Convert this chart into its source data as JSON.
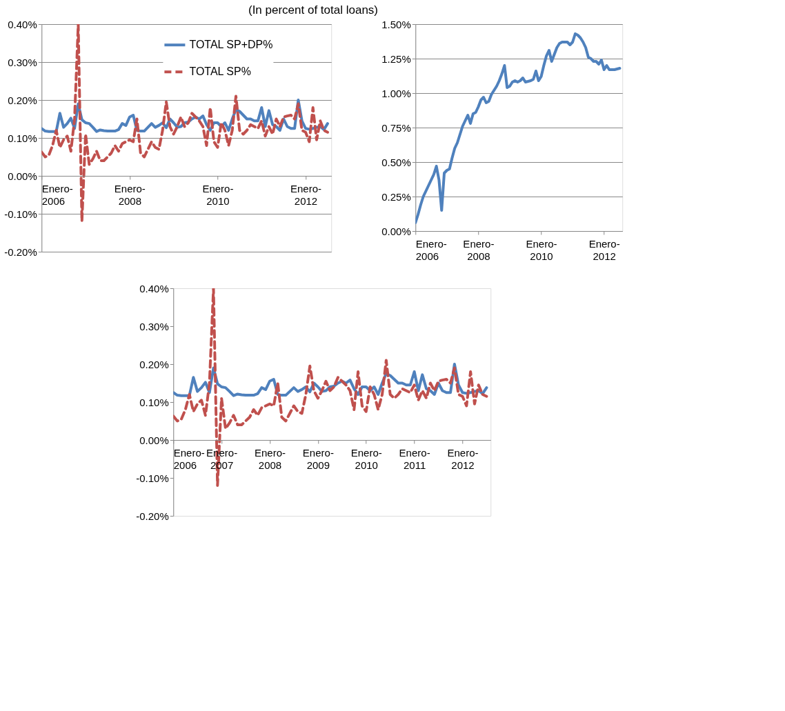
{
  "chart_data": [
    {
      "type": "line",
      "title": "(In percent of total loans)",
      "x": [
        "2006-01",
        "2006-02",
        "2006-03",
        "2006-04",
        "2006-05",
        "2006-06",
        "2006-07",
        "2006-08",
        "2006-09",
        "2006-10",
        "2006-11",
        "2006-12",
        "2007-01",
        "2007-02",
        "2007-03",
        "2007-04",
        "2007-05",
        "2007-06",
        "2007-07",
        "2007-08",
        "2007-09",
        "2007-10",
        "2007-11",
        "2007-12",
        "2008-01",
        "2008-02",
        "2008-03",
        "2008-04",
        "2008-05",
        "2008-06",
        "2008-07",
        "2008-08",
        "2008-09",
        "2008-10",
        "2008-11",
        "2008-12",
        "2009-01",
        "2009-02",
        "2009-03",
        "2009-04",
        "2009-05",
        "2009-06",
        "2009-07",
        "2009-08",
        "2009-09",
        "2009-10",
        "2009-11",
        "2009-12",
        "2010-01",
        "2010-02",
        "2010-03",
        "2010-04",
        "2010-05",
        "2010-06",
        "2010-07",
        "2010-08",
        "2010-09",
        "2010-10",
        "2010-11",
        "2010-12",
        "2011-01",
        "2011-02",
        "2011-03",
        "2011-04",
        "2011-05",
        "2011-06",
        "2011-07",
        "2011-08",
        "2011-09",
        "2011-10",
        "2011-11",
        "2011-12",
        "2012-01",
        "2012-02",
        "2012-03",
        "2012-04",
        "2012-05",
        "2012-06",
        "2012-07"
      ],
      "xlim": [
        "2006-01",
        "2012-08"
      ],
      "xticks": [
        {
          "value": "2006-01",
          "label": "Enero-2006"
        },
        {
          "value": "2008-01",
          "label": "Enero-2008"
        },
        {
          "value": "2010-01",
          "label": "Enero-2010"
        },
        {
          "value": "2012-01",
          "label": "Enero-2012"
        }
      ],
      "ylim": [
        -0.2,
        0.4
      ],
      "yticks": [
        {
          "value": -0.2,
          "label": "-0.20%"
        },
        {
          "value": -0.1,
          "label": "-0.10%"
        },
        {
          "value": 0,
          "label": "0.00%"
        },
        {
          "value": 0.1,
          "label": "0.10%"
        },
        {
          "value": 0.2,
          "label": "0.20%"
        },
        {
          "value": 0.3,
          "label": "0.30%"
        },
        {
          "value": 0.4,
          "label": "0.40%"
        }
      ],
      "grid": "y",
      "legend": "top right",
      "series": [
        {
          "name": "TOTAL SP+DP%",
          "color": "#4f81bd",
          "line_style": "solid",
          "values": [
            0.125,
            0.118,
            0.117,
            0.117,
            0.117,
            0.165,
            0.128,
            0.138,
            0.152,
            0.125,
            0.19,
            0.148,
            0.14,
            0.138,
            0.128,
            0.117,
            0.121,
            0.119,
            0.118,
            0.118,
            0.118,
            0.122,
            0.138,
            0.133,
            0.155,
            0.16,
            0.12,
            0.118,
            0.118,
            0.128,
            0.138,
            0.128,
            0.133,
            0.14,
            0.127,
            0.15,
            0.14,
            0.128,
            0.13,
            0.14,
            0.142,
            0.15,
            0.155,
            0.15,
            0.158,
            0.135,
            0.12,
            0.14,
            0.14,
            0.13,
            0.14,
            0.12,
            0.15,
            0.175,
            0.17,
            0.16,
            0.15,
            0.15,
            0.145,
            0.145,
            0.18,
            0.13,
            0.172,
            0.135,
            0.13,
            0.12,
            0.15,
            0.13,
            0.125,
            0.125,
            0.2,
            0.145,
            0.125,
            0.123,
            0.125,
            0.128,
            0.13,
            0.122,
            0.138
          ]
        },
        {
          "name": "TOTAL SP%",
          "color": "#c0504d",
          "line_style": "dashed",
          "values": [
            0.063,
            0.05,
            0.055,
            0.08,
            0.12,
            0.075,
            0.095,
            0.105,
            0.065,
            0.15,
            0.4,
            -0.12,
            0.11,
            0.03,
            0.045,
            0.065,
            0.04,
            0.04,
            0.05,
            0.06,
            0.08,
            0.065,
            0.085,
            0.09,
            0.095,
            0.09,
            0.15,
            0.06,
            0.05,
            0.07,
            0.09,
            0.075,
            0.07,
            0.12,
            0.195,
            0.13,
            0.11,
            0.13,
            0.155,
            0.13,
            0.14,
            0.165,
            0.155,
            0.145,
            0.13,
            0.08,
            0.18,
            0.09,
            0.075,
            0.14,
            0.12,
            0.08,
            0.12,
            0.21,
            0.12,
            0.11,
            0.12,
            0.135,
            0.13,
            0.125,
            0.145,
            0.105,
            0.13,
            0.11,
            0.15,
            0.13,
            0.155,
            0.158,
            0.16,
            0.15,
            0.19,
            0.12,
            0.115,
            0.09,
            0.18,
            0.095,
            0.145,
            0.12,
            0.115
          ]
        }
      ]
    },
    {
      "type": "line",
      "x": [
        "2006-01",
        "2006-02",
        "2006-03",
        "2006-04",
        "2006-05",
        "2006-06",
        "2006-07",
        "2006-08",
        "2006-09",
        "2006-10",
        "2006-11",
        "2006-12",
        "2007-01",
        "2007-02",
        "2007-03",
        "2007-04",
        "2007-05",
        "2007-06",
        "2007-07",
        "2007-08",
        "2007-09",
        "2007-10",
        "2007-11",
        "2007-12",
        "2008-01",
        "2008-02",
        "2008-03",
        "2008-04",
        "2008-05",
        "2008-06",
        "2008-07",
        "2008-08",
        "2008-09",
        "2008-10",
        "2008-11",
        "2008-12",
        "2009-01",
        "2009-02",
        "2009-03",
        "2009-04",
        "2009-05",
        "2009-06",
        "2009-07",
        "2009-08",
        "2009-09",
        "2009-10",
        "2009-11",
        "2009-12",
        "2010-01",
        "2010-02",
        "2010-03",
        "2010-04",
        "2010-05",
        "2010-06",
        "2010-07",
        "2010-08",
        "2010-09",
        "2010-10",
        "2010-11",
        "2010-12",
        "2011-01",
        "2011-02",
        "2011-03",
        "2011-04",
        "2011-05",
        "2011-06",
        "2011-07",
        "2011-08",
        "2011-09",
        "2011-10",
        "2011-11",
        "2011-12",
        "2012-01",
        "2012-02",
        "2012-03",
        "2012-04",
        "2012-05",
        "2012-06",
        "2012-07"
      ],
      "xlim": [
        "2006-01",
        "2012-08"
      ],
      "xticks": [
        {
          "value": "2006-01",
          "label": "Enero-2006"
        },
        {
          "value": "2008-01",
          "label": "Enero-2008"
        },
        {
          "value": "2010-01",
          "label": "Enero-2010"
        },
        {
          "value": "2012-01",
          "label": "Enero-2012"
        }
      ],
      "ylim": [
        0,
        1.5
      ],
      "yticks": [
        {
          "value": 0,
          "label": "0.00%"
        },
        {
          "value": 0.25,
          "label": "0.25%"
        },
        {
          "value": 0.5,
          "label": "0.50%"
        },
        {
          "value": 0.75,
          "label": "0.75%"
        },
        {
          "value": 1,
          "label": "1.00%"
        },
        {
          "value": 1.25,
          "label": "1.25%"
        },
        {
          "value": 1.5,
          "label": "1.50%"
        }
      ],
      "grid": "y",
      "series": [
        {
          "color": "#4f81bd",
          "line_style": "solid",
          "values": [
            0.06,
            0.12,
            0.19,
            0.25,
            0.29,
            0.33,
            0.37,
            0.41,
            0.47,
            0.37,
            0.15,
            0.42,
            0.44,
            0.45,
            0.53,
            0.6,
            0.64,
            0.7,
            0.76,
            0.8,
            0.84,
            0.78,
            0.85,
            0.86,
            0.9,
            0.95,
            0.97,
            0.93,
            0.94,
            0.99,
            1.02,
            1.05,
            1.09,
            1.14,
            1.2,
            1.04,
            1.05,
            1.08,
            1.09,
            1.08,
            1.09,
            1.11,
            1.08,
            1.085,
            1.09,
            1.1,
            1.16,
            1.09,
            1.12,
            1.2,
            1.27,
            1.31,
            1.23,
            1.28,
            1.33,
            1.36,
            1.37,
            1.37,
            1.37,
            1.35,
            1.37,
            1.43,
            1.42,
            1.4,
            1.37,
            1.33,
            1.26,
            1.25,
            1.23,
            1.23,
            1.21,
            1.24,
            1.17,
            1.2,
            1.17,
            1.17,
            1.17,
            1.175,
            1.18
          ]
        }
      ]
    },
    {
      "type": "line",
      "x": [
        "2006-01",
        "2006-02",
        "2006-03",
        "2006-04",
        "2006-05",
        "2006-06",
        "2006-07",
        "2006-08",
        "2006-09",
        "2006-10",
        "2006-11",
        "2006-12",
        "2007-01",
        "2007-02",
        "2007-03",
        "2007-04",
        "2007-05",
        "2007-06",
        "2007-07",
        "2007-08",
        "2007-09",
        "2007-10",
        "2007-11",
        "2007-12",
        "2008-01",
        "2008-02",
        "2008-03",
        "2008-04",
        "2008-05",
        "2008-06",
        "2008-07",
        "2008-08",
        "2008-09",
        "2008-10",
        "2008-11",
        "2008-12",
        "2009-01",
        "2009-02",
        "2009-03",
        "2009-04",
        "2009-05",
        "2009-06",
        "2009-07",
        "2009-08",
        "2009-09",
        "2009-10",
        "2009-11",
        "2009-12",
        "2010-01",
        "2010-02",
        "2010-03",
        "2010-04",
        "2010-05",
        "2010-06",
        "2010-07",
        "2010-08",
        "2010-09",
        "2010-10",
        "2010-11",
        "2010-12",
        "2011-01",
        "2011-02",
        "2011-03",
        "2011-04",
        "2011-05",
        "2011-06",
        "2011-07",
        "2011-08",
        "2011-09",
        "2011-10",
        "2011-11",
        "2011-12",
        "2012-01",
        "2012-02",
        "2012-03",
        "2012-04",
        "2012-05",
        "2012-06",
        "2012-07"
      ],
      "xlim": [
        "2006-01",
        "2012-08"
      ],
      "xticks": [
        {
          "value": "2006-01",
          "label": "Enero-2006"
        },
        {
          "value": "2007-01",
          "label": "Enero-2007"
        },
        {
          "value": "2008-01",
          "label": "Enero-2008"
        },
        {
          "value": "2009-01",
          "label": "Enero-2009"
        },
        {
          "value": "2010-01",
          "label": "Enero-2010"
        },
        {
          "value": "2011-01",
          "label": "Enero-2011"
        },
        {
          "value": "2012-01",
          "label": "Enero-2012"
        }
      ],
      "ylim": [
        -0.2,
        0.4
      ],
      "yticks": [
        {
          "value": -0.2,
          "label": "-0.20%"
        },
        {
          "value": -0.1,
          "label": "-0.10%"
        },
        {
          "value": 0,
          "label": "0.00%"
        },
        {
          "value": 0.1,
          "label": "0.10%"
        },
        {
          "value": 0.2,
          "label": "0.20%"
        },
        {
          "value": 0.3,
          "label": "0.30%"
        },
        {
          "value": 0.4,
          "label": "0.40%"
        }
      ],
      "legend": "top right",
      "series": [
        {
          "name": "TOTAL SP+DP%",
          "color": "#4f81bd",
          "line_style": "solid",
          "values": [
            0.125,
            0.118,
            0.117,
            0.117,
            0.117,
            0.165,
            0.128,
            0.138,
            0.152,
            0.125,
            0.19,
            0.148,
            0.14,
            0.138,
            0.128,
            0.117,
            0.121,
            0.119,
            0.118,
            0.118,
            0.118,
            0.122,
            0.138,
            0.133,
            0.155,
            0.16,
            0.12,
            0.118,
            0.118,
            0.128,
            0.138,
            0.128,
            0.133,
            0.14,
            0.127,
            0.15,
            0.14,
            0.128,
            0.13,
            0.14,
            0.142,
            0.15,
            0.155,
            0.15,
            0.158,
            0.135,
            0.12,
            0.14,
            0.14,
            0.13,
            0.14,
            0.12,
            0.15,
            0.175,
            0.17,
            0.16,
            0.15,
            0.15,
            0.145,
            0.145,
            0.18,
            0.13,
            0.172,
            0.135,
            0.13,
            0.12,
            0.15,
            0.13,
            0.125,
            0.125,
            0.2,
            0.145,
            0.125,
            0.123,
            0.125,
            0.128,
            0.13,
            0.122,
            0.138
          ]
        },
        {
          "color": "#c0504d",
          "line_style": "dashed",
          "values": [
            0.063,
            0.05,
            0.055,
            0.08,
            0.12,
            0.075,
            0.095,
            0.105,
            0.065,
            0.15,
            0.4,
            -0.12,
            0.11,
            0.03,
            0.045,
            0.065,
            0.04,
            0.04,
            0.05,
            0.06,
            0.08,
            0.065,
            0.085,
            0.09,
            0.095,
            0.09,
            0.15,
            0.06,
            0.05,
            0.07,
            0.09,
            0.075,
            0.07,
            0.12,
            0.195,
            0.13,
            0.11,
            0.13,
            0.155,
            0.13,
            0.14,
            0.165,
            0.155,
            0.145,
            0.13,
            0.08,
            0.18,
            0.09,
            0.075,
            0.14,
            0.12,
            0.08,
            0.12,
            0.21,
            0.12,
            0.11,
            0.12,
            0.135,
            0.13,
            0.125,
            0.145,
            0.105,
            0.13,
            0.11,
            0.15,
            0.13,
            0.155,
            0.158,
            0.16,
            0.15,
            0.19,
            0.12,
            0.115,
            0.09,
            0.18,
            0.095,
            0.145,
            0.12,
            0.115
          ]
        }
      ]
    }
  ]
}
